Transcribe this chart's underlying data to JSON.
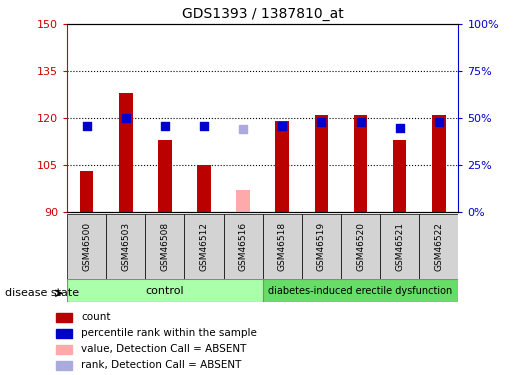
{
  "title": "GDS1393 / 1387810_at",
  "samples": [
    "GSM46500",
    "GSM46503",
    "GSM46508",
    "GSM46512",
    "GSM46516",
    "GSM46518",
    "GSM46519",
    "GSM46520",
    "GSM46521",
    "GSM46522"
  ],
  "bar_values": [
    103,
    128,
    113,
    105,
    null,
    119,
    121,
    121,
    113,
    121
  ],
  "bar_absent_value": 97,
  "absent_index": 4,
  "rank_values": [
    46,
    50,
    46,
    46,
    null,
    46,
    48,
    48,
    45,
    48
  ],
  "rank_absent_value": 44,
  "ylim": [
    90,
    150
  ],
  "y2lim": [
    0,
    100
  ],
  "yticks": [
    90,
    105,
    120,
    135,
    150
  ],
  "y2ticks": [
    0,
    25,
    50,
    75,
    100
  ],
  "ytick_labels": [
    "90",
    "105",
    "120",
    "135",
    "150"
  ],
  "y2tick_labels": [
    "0%",
    "25%",
    "50%",
    "75%",
    "100%"
  ],
  "bar_color": "#bb0000",
  "bar_absent_color": "#ffaaaa",
  "rank_color": "#0000cc",
  "rank_absent_color": "#aaaadd",
  "control_indices": [
    0,
    1,
    2,
    3,
    4
  ],
  "disease_indices": [
    5,
    6,
    7,
    8,
    9
  ],
  "control_label": "control",
  "disease_label": "diabetes-induced erectile dysfunction",
  "group_label": "disease state",
  "legend_items": [
    "count",
    "percentile rank within the sample",
    "value, Detection Call = ABSENT",
    "rank, Detection Call = ABSENT"
  ],
  "legend_colors": [
    "#bb0000",
    "#0000cc",
    "#ffaaaa",
    "#aaaadd"
  ],
  "bar_width": 0.35,
  "rank_marker_size": 38,
  "grid_color": "#000000",
  "control_color": "#aaffaa",
  "disease_color": "#66dd66",
  "tick_color_left": "#cc0000",
  "tick_color_right": "#0000cc",
  "bg_color": "#ffffff"
}
